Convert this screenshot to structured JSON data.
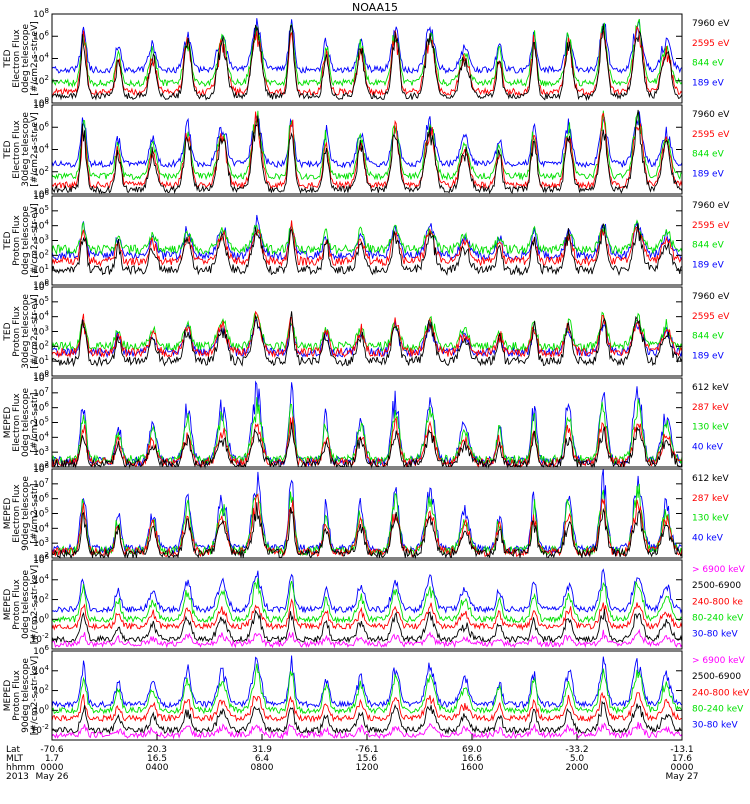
{
  "title": "NOAA15",
  "colors": {
    "black": "#000000",
    "red": "#ff0000",
    "green": "#00e000",
    "blue": "#0000ff",
    "magenta": "#ff00ff"
  },
  "chart_data": [
    {
      "type": "line",
      "instrument": "TED",
      "ylabel": [
        "TED",
        "Electron Flux",
        "0deg telescope",
        "[#/cm2-s-str-eV]"
      ],
      "log_scale": true,
      "ytick_exponents": [
        0,
        2,
        4,
        6,
        8
      ],
      "ylim_exp": [
        0,
        8
      ],
      "series": [
        {
          "name": "7960 eV",
          "color": "black",
          "base_exp": 0.6,
          "peak_exp": 6.5
        },
        {
          "name": "2595 eV",
          "color": "red",
          "base_exp": 1.0,
          "peak_exp": 6.5
        },
        {
          "name": "844 eV",
          "color": "green",
          "base_exp": 1.8,
          "peak_exp": 6.8
        },
        {
          "name": "189 eV",
          "color": "blue",
          "base_exp": 3.0,
          "peak_exp": 7.0
        }
      ]
    },
    {
      "type": "line",
      "instrument": "TED",
      "ylabel": [
        "TED",
        "Electron Flux",
        "30deg telescope",
        "[#/cm2-s-str-eV]"
      ],
      "log_scale": true,
      "ytick_exponents": [
        0,
        2,
        4,
        6,
        8
      ],
      "ylim_exp": [
        0,
        8
      ],
      "series": [
        {
          "name": "7960 eV",
          "color": "black",
          "base_exp": 0.4,
          "peak_exp": 6.3
        },
        {
          "name": "2595 eV",
          "color": "red",
          "base_exp": 0.8,
          "peak_exp": 6.4
        },
        {
          "name": "844 eV",
          "color": "green",
          "base_exp": 1.6,
          "peak_exp": 6.7
        },
        {
          "name": "189 eV",
          "color": "blue",
          "base_exp": 2.7,
          "peak_exp": 6.9
        }
      ]
    },
    {
      "type": "line",
      "instrument": "TED",
      "ylabel": [
        "TED",
        "Proton Flux",
        "0deg telescope",
        "[#/cm2-s-str-eV]"
      ],
      "log_scale": true,
      "ytick_exponents": [
        0,
        1,
        2,
        3,
        4,
        5,
        6
      ],
      "ylim_exp": [
        0,
        6
      ],
      "series": [
        {
          "name": "7960 eV",
          "color": "black",
          "base_exp": 1.0,
          "peak_exp": 3.8
        },
        {
          "name": "2595 eV",
          "color": "red",
          "base_exp": 1.6,
          "peak_exp": 3.8
        },
        {
          "name": "844 eV",
          "color": "green",
          "base_exp": 2.4,
          "peak_exp": 4.0
        },
        {
          "name": "189 eV",
          "color": "blue",
          "base_exp": 2.0,
          "peak_exp": 4.2
        }
      ]
    },
    {
      "type": "line",
      "instrument": "TED",
      "ylabel": [
        "TED",
        "Proton Flux",
        "30deg telescope",
        "[#/cm2-s-str-eV]"
      ],
      "log_scale": true,
      "ytick_exponents": [
        0,
        1,
        2,
        3,
        4,
        5,
        6
      ],
      "ylim_exp": [
        0,
        6
      ],
      "series": [
        {
          "name": "7960 eV",
          "color": "black",
          "base_exp": 1.0,
          "peak_exp": 3.8
        },
        {
          "name": "2595 eV",
          "color": "red",
          "base_exp": 1.6,
          "peak_exp": 3.8
        },
        {
          "name": "844 eV",
          "color": "green",
          "base_exp": 2.0,
          "peak_exp": 4.0
        },
        {
          "name": "189 eV",
          "color": "blue",
          "base_exp": 1.6,
          "peak_exp": 3.6
        }
      ]
    },
    {
      "type": "line",
      "instrument": "MEPED",
      "ylabel": [
        "MEPED",
        "Electron Flux",
        "0deg telescope",
        "[#/cm2-s-str]"
      ],
      "log_scale": true,
      "ytick_exponents": [
        2,
        3,
        4,
        5,
        6,
        7,
        8
      ],
      "ylim_exp": [
        2,
        8
      ],
      "series": [
        {
          "name": "612 keV",
          "color": "black",
          "base_exp": 2.2,
          "peak_exp": 4.5
        },
        {
          "name": "287 keV",
          "color": "red",
          "base_exp": 2.3,
          "peak_exp": 5.0
        },
        {
          "name": "130 keV",
          "color": "green",
          "base_exp": 2.5,
          "peak_exp": 6.0
        },
        {
          "name": "40 keV",
          "color": "blue",
          "base_exp": 2.4,
          "peak_exp": 7.0
        }
      ]
    },
    {
      "type": "line",
      "instrument": "MEPED",
      "ylabel": [
        "MEPED",
        "Electron Flux",
        "90deg telescope",
        "[#/cm2-s-str]"
      ],
      "log_scale": true,
      "ytick_exponents": [
        2,
        3,
        4,
        5,
        6,
        7,
        8
      ],
      "ylim_exp": [
        2,
        8
      ],
      "series": [
        {
          "name": "612 keV",
          "color": "black",
          "base_exp": 2.3,
          "peak_exp": 5.0
        },
        {
          "name": "287 keV",
          "color": "red",
          "base_exp": 2.4,
          "peak_exp": 5.6
        },
        {
          "name": "130 keV",
          "color": "green",
          "base_exp": 2.5,
          "peak_exp": 6.2
        },
        {
          "name": "40 keV",
          "color": "blue",
          "base_exp": 2.6,
          "peak_exp": 7.0
        }
      ]
    },
    {
      "type": "line",
      "instrument": "MEPED",
      "ylabel": [
        "MEPED",
        "Proton Flux",
        "0deg telescope",
        "[#/cm2-s-str-keV]"
      ],
      "log_scale": true,
      "ytick_exponents": [
        -2,
        0,
        2,
        4,
        6
      ],
      "ylim_exp": [
        -3,
        6
      ],
      "series": [
        {
          "name": "> 6900 keV",
          "color": "magenta",
          "base_exp": -2.5,
          "peak_exp": -1.5
        },
        {
          "name": "2500-6900",
          "color": "black",
          "base_exp": -2.0,
          "peak_exp": 0.5
        },
        {
          "name": "240-800 ke",
          "color": "red",
          "base_exp": -0.7,
          "peak_exp": 1.5
        },
        {
          "name": "80-240 keV",
          "color": "green",
          "base_exp": 0.0,
          "peak_exp": 3.5
        },
        {
          "name": "30-80 keV",
          "color": "blue",
          "base_exp": 1.0,
          "peak_exp": 4.5
        }
      ]
    },
    {
      "type": "line",
      "instrument": "MEPED",
      "ylabel": [
        "MEPED",
        "Proton Flux",
        "90deg telescope",
        "[#/cm2-s-str-keV]"
      ],
      "log_scale": true,
      "ytick_exponents": [
        -2,
        0,
        2,
        4,
        6
      ],
      "ylim_exp": [
        -3,
        6
      ],
      "series": [
        {
          "name": "> 6900 keV",
          "color": "magenta",
          "base_exp": -2.5,
          "peak_exp": -1.5
        },
        {
          "name": "2500-6900",
          "color": "black",
          "base_exp": -2.0,
          "peak_exp": 0.5
        },
        {
          "name": "240-800 keV",
          "color": "red",
          "base_exp": -0.8,
          "peak_exp": 1.5
        },
        {
          "name": "80-240 keV",
          "color": "green",
          "base_exp": 0.0,
          "peak_exp": 3.8
        },
        {
          "name": "30-80 keV",
          "color": "blue",
          "base_exp": 0.6,
          "peak_exp": 4.8
        }
      ]
    }
  ],
  "time_axis": {
    "row_labels": [
      "Lat",
      "MLT",
      "hhmm",
      "2013"
    ],
    "ticks": [
      {
        "lat": "-70.6",
        "mlt": "1.7",
        "hhmm": "0000",
        "date": "May 26"
      },
      {
        "lat": "20.3",
        "mlt": "16.5",
        "hhmm": "0400",
        "date": ""
      },
      {
        "lat": "31.9",
        "mlt": "6.4",
        "hhmm": "0800",
        "date": ""
      },
      {
        "lat": "-76.1",
        "mlt": "15.6",
        "hhmm": "1200",
        "date": ""
      },
      {
        "lat": "69.0",
        "mlt": "16.6",
        "hhmm": "1600",
        "date": ""
      },
      {
        "lat": "-33.2",
        "mlt": "5.0",
        "hhmm": "2000",
        "date": ""
      },
      {
        "lat": "-13.1",
        "mlt": "17.6",
        "hhmm": "0000",
        "date": "May 27"
      }
    ]
  }
}
